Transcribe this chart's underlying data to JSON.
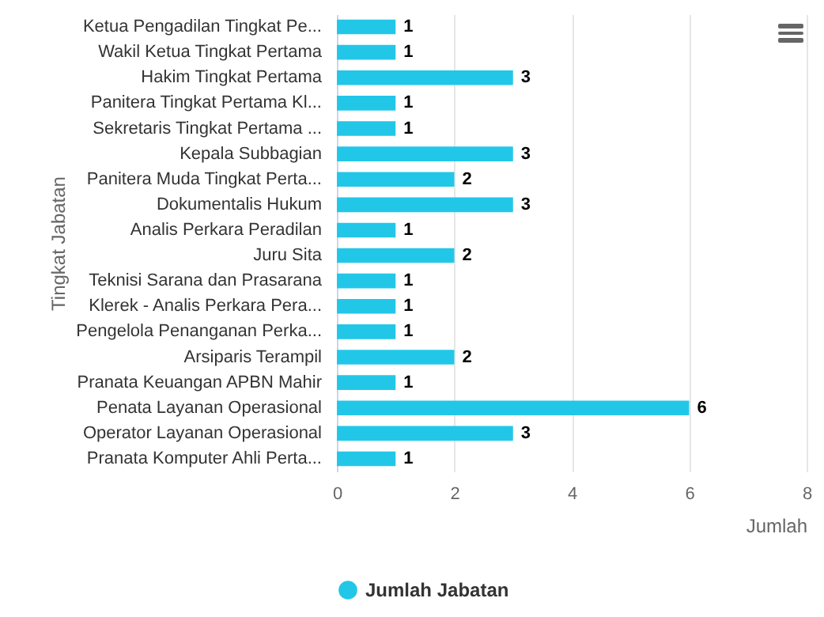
{
  "chart_data": {
    "type": "bar",
    "orientation": "horizontal",
    "xlabel": "Jumlah",
    "ylabel": "Tingkat Jabatan",
    "categories": [
      "Ketua Pengadilan Tingkat Pe...",
      "Wakil Ketua Tingkat Pertama",
      "Hakim Tingkat Pertama",
      "Panitera Tingkat Pertama Kl...",
      "Sekretaris Tingkat Pertama ...",
      "Kepala Subbagian",
      "Panitera Muda Tingkat Perta...",
      "Dokumentalis Hukum",
      "Analis Perkara Peradilan",
      "Juru Sita",
      "Teknisi Sarana dan Prasarana",
      "Klerek - Analis Perkara Pera...",
      "Pengelola Penanganan Perka...",
      "Arsiparis Terampil",
      "Pranata Keuangan APBN Mahir",
      "Penata Layanan Operasional",
      "Operator Layanan Operasional",
      "Pranata Komputer Ahli Perta..."
    ],
    "series": [
      {
        "name": "Jumlah Jabatan",
        "color": "#22c7e8",
        "values": [
          1,
          1,
          3,
          1,
          1,
          3,
          2,
          3,
          1,
          2,
          1,
          1,
          1,
          2,
          1,
          6,
          3,
          1
        ]
      }
    ],
    "xlim": [
      0,
      8
    ],
    "xticks": [
      0,
      2,
      4,
      6,
      8
    ],
    "grid": "x",
    "legend": "bottom",
    "data_labels": true
  }
}
